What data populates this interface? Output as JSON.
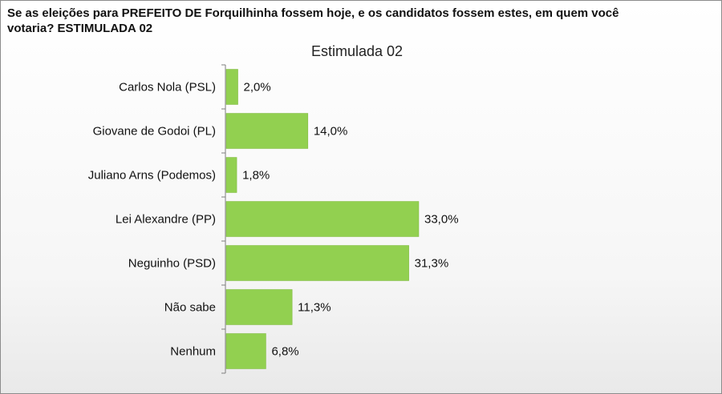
{
  "question": {
    "line1": "Se as eleições para PREFEITO DE Forquilhinha fossem hoje, e os candidatos fossem estes, em quem você",
    "line2": "votaria? ESTIMULADA 02"
  },
  "chart_data": {
    "type": "bar",
    "orientation": "horizontal",
    "title": "Estimulada 02",
    "categories": [
      "Carlos Nola (PSL)",
      "Giovane de Godoi (PL)",
      "Juliano Arns (Podemos)",
      "Lei Alexandre (PP)",
      "Neguinho (PSD)",
      "Não sabe",
      "Nenhum"
    ],
    "values": [
      2.0,
      14.0,
      1.8,
      33.0,
      31.3,
      11.3,
      6.8
    ],
    "value_labels": [
      "2,0%",
      "14,0%",
      "1,8%",
      "33,0%",
      "31,3%",
      "11,3%",
      "6,8%"
    ],
    "xlabel": "",
    "ylabel": "",
    "xlim": [
      0,
      40
    ],
    "grid": false,
    "bar_color": "#92d050"
  }
}
